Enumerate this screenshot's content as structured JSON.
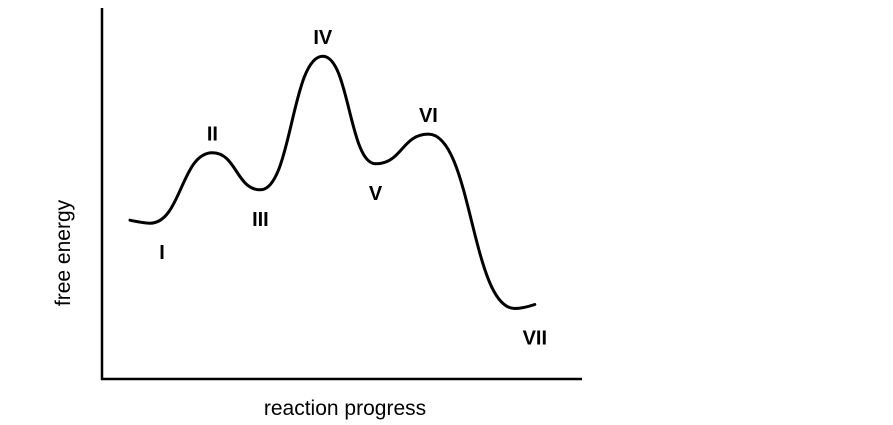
{
  "chart_data": {
    "type": "line",
    "title": "",
    "xlabel": "reaction progress",
    "ylabel": "free energy",
    "grid": false,
    "legend": "none",
    "xlim": [
      0,
      10
    ],
    "ylim": [
      0,
      10
    ],
    "series": [
      {
        "points": [
          {
            "x": 1.0,
            "y": 4.2,
            "label": "I"
          },
          {
            "x": 2.3,
            "y": 6.1,
            "label": "II"
          },
          {
            "x": 3.3,
            "y": 5.1,
            "label": "III"
          },
          {
            "x": 4.6,
            "y": 8.7,
            "label": "IV"
          },
          {
            "x": 5.7,
            "y": 5.8,
            "label": "V"
          },
          {
            "x": 6.8,
            "y": 6.6,
            "label": "VI"
          },
          {
            "x": 8.6,
            "y": 1.9,
            "label": "VII"
          }
        ]
      }
    ]
  }
}
